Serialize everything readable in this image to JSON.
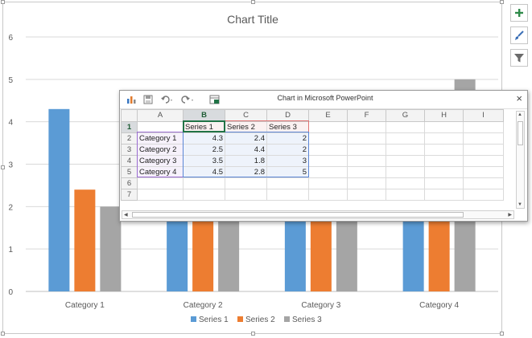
{
  "chart_data": {
    "type": "bar",
    "title": "Chart Title",
    "categories": [
      "Category 1",
      "Category 2",
      "Category 3",
      "Category 4"
    ],
    "series": [
      {
        "name": "Series 1",
        "values": [
          4.3,
          2.5,
          3.5,
          4.5
        ],
        "color": "#5b9bd5"
      },
      {
        "name": "Series 2",
        "values": [
          2.4,
          4.4,
          1.8,
          2.8
        ],
        "color": "#ed7d31"
      },
      {
        "name": "Series 3",
        "values": [
          2,
          2,
          3,
          5
        ],
        "color": "#a5a5a5"
      }
    ],
    "y_ticks": [
      "0",
      "1",
      "2",
      "3",
      "4",
      "5",
      "6"
    ],
    "ylim": [
      0,
      6
    ],
    "grid": true,
    "legend_position": "bottom"
  },
  "side_buttons": [
    {
      "name": "chart-elements-button",
      "icon": "plus-icon"
    },
    {
      "name": "chart-styles-button",
      "icon": "brush-icon"
    },
    {
      "name": "chart-filters-button",
      "icon": "filter-icon"
    }
  ],
  "spreadsheet": {
    "title": "Chart in Microsoft PowerPoint",
    "close_glyph": "×",
    "toolbar": [
      "chart-icon",
      "save-icon",
      "undo-icon",
      "redo-icon",
      "edit-in-excel-icon"
    ],
    "columns": [
      "A",
      "B",
      "C",
      "D",
      "E",
      "F",
      "G",
      "H",
      "I"
    ],
    "rows": [
      [
        "",
        "Series 1",
        "Series 2",
        "Series 3",
        "",
        "",
        "",
        "",
        ""
      ],
      [
        "Category 1",
        "4.3",
        "2.4",
        "2",
        "",
        "",
        "",
        "",
        ""
      ],
      [
        "Category 2",
        "2.5",
        "4.4",
        "2",
        "",
        "",
        "",
        "",
        ""
      ],
      [
        "Category 3",
        "3.5",
        "1.8",
        "3",
        "",
        "",
        "",
        "",
        ""
      ],
      [
        "Category 4",
        "4.5",
        "2.8",
        "5",
        "",
        "",
        "",
        "",
        ""
      ],
      [
        "",
        "",
        "",
        "",
        "",
        "",
        "",
        "",
        ""
      ],
      [
        "",
        "",
        "",
        "",
        "",
        "",
        "",
        "",
        ""
      ]
    ],
    "row_numbers": [
      "1",
      "2",
      "3",
      "4",
      "5",
      "6",
      "7"
    ]
  }
}
